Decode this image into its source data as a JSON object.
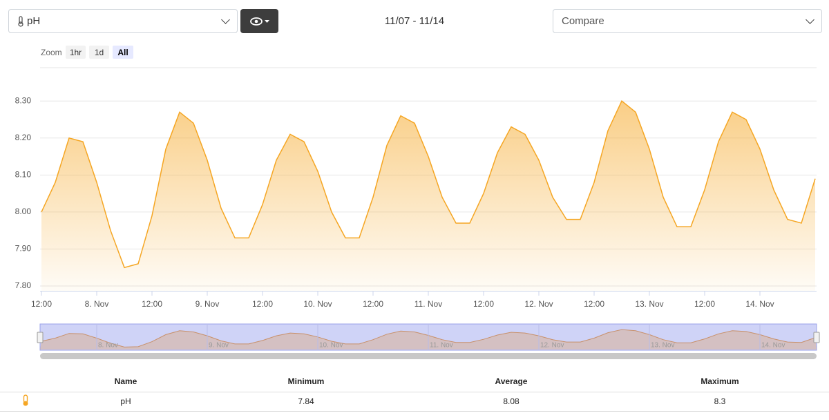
{
  "toolbar": {
    "parameter": "pH",
    "date_range": "11/07 - 11/14",
    "compare_placeholder": "Compare"
  },
  "zoom": {
    "label": "Zoom",
    "buttons": [
      "1hr",
      "1d",
      "All"
    ],
    "active": 2
  },
  "chart_data": {
    "type": "line",
    "color": "#f5a623",
    "grid": true,
    "x": [
      12,
      15,
      18,
      21,
      24,
      27,
      30,
      33,
      36,
      39,
      42,
      45,
      48,
      51,
      54,
      57,
      60,
      63,
      66,
      69,
      72,
      75,
      78,
      81,
      84,
      87,
      90,
      93,
      96,
      99,
      102,
      105,
      108,
      111,
      114,
      117,
      120,
      123,
      126,
      129,
      132,
      135,
      138,
      141,
      144,
      147,
      150,
      153,
      156,
      159,
      162,
      165,
      168,
      171,
      174,
      177,
      180
    ],
    "series": [
      {
        "name": "pH",
        "color": "#f5a623",
        "values": [
          8.0,
          8.08,
          8.2,
          8.19,
          8.08,
          7.95,
          7.85,
          7.86,
          7.99,
          8.17,
          8.27,
          8.24,
          8.14,
          8.01,
          7.93,
          7.93,
          8.02,
          8.14,
          8.21,
          8.19,
          8.11,
          8.0,
          7.93,
          7.93,
          8.04,
          8.18,
          8.26,
          8.24,
          8.15,
          8.04,
          7.97,
          7.97,
          8.05,
          8.16,
          8.23,
          8.21,
          8.14,
          8.04,
          7.98,
          7.98,
          8.08,
          8.22,
          8.3,
          8.27,
          8.17,
          8.04,
          7.96,
          7.96,
          8.06,
          8.19,
          8.27,
          8.25,
          8.17,
          8.06,
          7.98,
          7.97,
          8.09
        ]
      }
    ],
    "xlim": [
      11.7,
      180.3
    ],
    "xticks": [
      {
        "value": 12,
        "label": "12:00"
      },
      {
        "value": 24,
        "label": "8. Nov"
      },
      {
        "value": 36,
        "label": "12:00"
      },
      {
        "value": 48,
        "label": "9. Nov"
      },
      {
        "value": 60,
        "label": "12:00"
      },
      {
        "value": 72,
        "label": "10. Nov"
      },
      {
        "value": 84,
        "label": "12:00"
      },
      {
        "value": 96,
        "label": "11. Nov"
      },
      {
        "value": 108,
        "label": "12:00"
      },
      {
        "value": 120,
        "label": "12. Nov"
      },
      {
        "value": 132,
        "label": "12:00"
      },
      {
        "value": 144,
        "label": "13. Nov"
      },
      {
        "value": 156,
        "label": "12:00"
      },
      {
        "value": 168,
        "label": "14. Nov"
      }
    ],
    "ylim": [
      7.787,
      8.39
    ],
    "yticks": [
      {
        "value": 7.8,
        "label": "7.80"
      },
      {
        "value": 7.9,
        "label": "7.90"
      },
      {
        "value": 8.0,
        "label": "8.00"
      },
      {
        "value": 8.1,
        "label": "8.10"
      },
      {
        "value": 8.2,
        "label": "8.20"
      },
      {
        "value": 8.3,
        "label": "8.30"
      }
    ]
  },
  "table": {
    "headers": [
      "Name",
      "Minimum",
      "Average",
      "Maximum"
    ],
    "rows": [
      [
        "pH",
        7.84,
        8.08,
        8.3
      ]
    ]
  }
}
